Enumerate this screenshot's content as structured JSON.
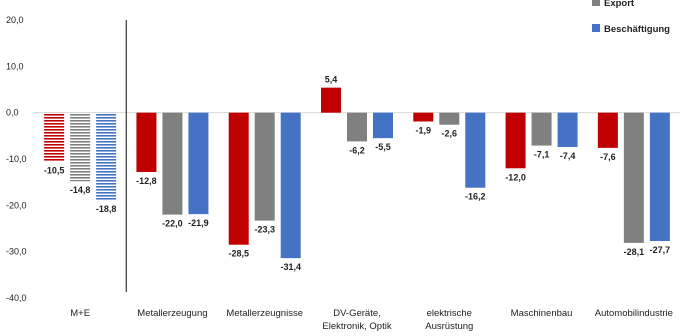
{
  "chart_data": {
    "type": "bar",
    "categories": [
      [
        "M+E"
      ],
      [
        "Metallerzeugung"
      ],
      [
        "Metallerzeugnisse"
      ],
      [
        "DV-Geräte,",
        "Elektronik, Optik"
      ],
      [
        "elektrische",
        "Ausrüstung"
      ],
      [
        "Maschinenbau"
      ],
      [
        "Automobilindustrie"
      ]
    ],
    "series": [
      {
        "name": "",
        "color": "#c00000",
        "values": [
          -10.5,
          -12.8,
          -28.5,
          5.4,
          -1.9,
          -12.0,
          -7.6
        ]
      },
      {
        "name": "Export",
        "color": "#808080",
        "values": [
          -14.8,
          -22.0,
          -23.3,
          -6.2,
          -2.6,
          -7.1,
          -28.1
        ]
      },
      {
        "name": "Beschäftigung",
        "color": "#4472c4",
        "values": [
          -18.8,
          -21.9,
          -31.4,
          -5.5,
          -16.2,
          -7.4,
          -27.7
        ]
      }
    ],
    "data_labels": [
      [
        "-10,5",
        "-12,8",
        "-28,5",
        "5,4",
        "-1,9",
        "-12,0",
        "-7,6"
      ],
      [
        "-14,8",
        "-22,0",
        "-23,3",
        "-6,2",
        "-2,6",
        "-7,1",
        "-28,1"
      ],
      [
        "-18,8",
        "-21,9",
        "-31,4",
        "-5,5",
        "-16,2",
        "-7,4",
        "-27,7"
      ]
    ],
    "striped_categories": [
      "M+E"
    ],
    "yticks": [
      "20,0",
      "10,0",
      "0,0",
      "-10,0",
      "-20,0",
      "-30,0",
      "-40,0"
    ],
    "ytick_values": [
      20,
      10,
      0,
      -10,
      -20,
      -30,
      -40
    ],
    "ylim": [
      -40,
      20
    ],
    "title": "",
    "xlabel": "",
    "ylabel": "",
    "grid": false,
    "legend_position": "top-right",
    "separator_after_category": "M+E"
  }
}
